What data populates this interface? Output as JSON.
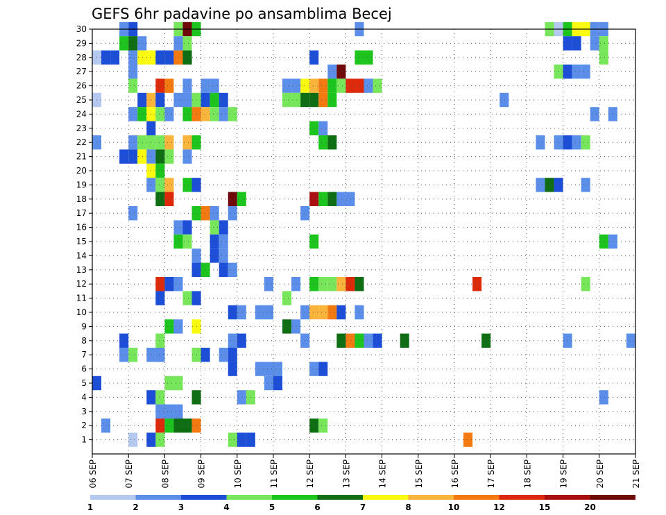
{
  "chart_data": {
    "type": "heatmap",
    "title": "GEFS 6hr padavine po ansamblima Becej",
    "x_tick_labels": [
      "06 SEP",
      "07 SEP",
      "08 SEP",
      "09 SEP",
      "10 SEP",
      "11 SEP",
      "12 SEP",
      "13 SEP",
      "14 SEP",
      "15 SEP",
      "16 SEP",
      "17 SEP",
      "18 SEP",
      "19 SEP",
      "20 SEP",
      "21 SEP"
    ],
    "x_range_days": [
      0,
      15
    ],
    "y_tick_labels": [
      "1",
      "2",
      "3",
      "4",
      "5",
      "6",
      "7",
      "8",
      "9",
      "10",
      "11",
      "12",
      "13",
      "14",
      "15",
      "16",
      "17",
      "18",
      "19",
      "20",
      "21",
      "22",
      "23",
      "24",
      "25",
      "26",
      "27",
      "28",
      "29",
      "30"
    ],
    "y_range": [
      0,
      30
    ],
    "grid": true,
    "colorbar": {
      "position": "bottom",
      "labels": [
        "1",
        "2",
        "3",
        "4",
        "5",
        "6",
        "7",
        "8",
        "10",
        "12",
        "15",
        "20"
      ],
      "colors": [
        "#b4c8f0",
        "#5a8ee8",
        "#1c4ed8",
        "#78e65a",
        "#1ec41e",
        "#0f6e14",
        "#fafa10",
        "#fab43c",
        "#f27a10",
        "#dc2a0a",
        "#aa1010",
        "#6e0a0a"
      ]
    },
    "cells": [
      [
        0.75,
        30,
        1
      ],
      [
        1.0,
        30,
        2
      ],
      [
        2.25,
        30,
        3
      ],
      [
        2.5,
        30,
        11
      ],
      [
        2.75,
        30,
        4
      ],
      [
        7.25,
        30,
        1
      ],
      [
        12.5,
        30,
        3
      ],
      [
        12.75,
        30,
        0
      ],
      [
        13.0,
        30,
        4
      ],
      [
        13.25,
        30,
        6
      ],
      [
        13.5,
        30,
        6
      ],
      [
        13.75,
        30,
        1
      ],
      [
        14.0,
        30,
        1
      ],
      [
        0.75,
        29,
        4
      ],
      [
        1.0,
        29,
        5
      ],
      [
        1.25,
        29,
        1
      ],
      [
        2.25,
        29,
        1
      ],
      [
        2.5,
        29,
        3
      ],
      [
        13.0,
        29,
        2
      ],
      [
        13.25,
        29,
        2
      ],
      [
        13.75,
        29,
        1
      ],
      [
        14.0,
        29,
        3
      ],
      [
        1.0,
        28,
        1
      ],
      [
        0.0,
        28,
        0
      ],
      [
        0.25,
        28,
        2
      ],
      [
        0.5,
        28,
        2
      ],
      [
        1.25,
        28,
        6
      ],
      [
        1.5,
        28,
        6
      ],
      [
        1.75,
        28,
        2
      ],
      [
        2.0,
        28,
        2
      ],
      [
        2.25,
        28,
        8
      ],
      [
        2.5,
        28,
        5
      ],
      [
        6.0,
        28,
        2
      ],
      [
        7.25,
        28,
        4
      ],
      [
        7.5,
        28,
        4
      ],
      [
        14.0,
        28,
        3
      ],
      [
        1.0,
        27,
        1
      ],
      [
        6.5,
        27,
        1
      ],
      [
        6.75,
        27,
        11
      ],
      [
        12.75,
        27,
        3
      ],
      [
        13.0,
        27,
        2
      ],
      [
        13.25,
        27,
        1
      ],
      [
        13.5,
        27,
        1
      ],
      [
        1.0,
        26,
        3
      ],
      [
        1.75,
        26,
        9
      ],
      [
        2.0,
        26,
        8
      ],
      [
        2.5,
        26,
        1
      ],
      [
        3.0,
        26,
        1
      ],
      [
        3.25,
        26,
        1
      ],
      [
        5.25,
        26,
        1
      ],
      [
        5.5,
        26,
        1
      ],
      [
        5.75,
        26,
        6
      ],
      [
        6.0,
        26,
        7
      ],
      [
        6.25,
        26,
        8
      ],
      [
        6.5,
        26,
        4
      ],
      [
        6.75,
        26,
        3
      ],
      [
        7.0,
        26,
        9
      ],
      [
        7.25,
        26,
        9
      ],
      [
        7.5,
        26,
        1
      ],
      [
        7.75,
        26,
        3
      ],
      [
        0.0,
        25,
        0
      ],
      [
        1.25,
        25,
        2
      ],
      [
        1.5,
        25,
        7
      ],
      [
        1.75,
        25,
        2
      ],
      [
        2.25,
        25,
        1
      ],
      [
        2.5,
        25,
        1
      ],
      [
        2.75,
        25,
        3
      ],
      [
        3.0,
        25,
        2
      ],
      [
        3.25,
        25,
        4
      ],
      [
        3.5,
        25,
        2
      ],
      [
        5.25,
        25,
        3
      ],
      [
        5.5,
        25,
        3
      ],
      [
        5.75,
        25,
        5
      ],
      [
        6.0,
        25,
        5
      ],
      [
        6.25,
        25,
        8
      ],
      [
        6.5,
        25,
        4
      ],
      [
        11.25,
        25,
        1
      ],
      [
        1.0,
        24,
        1
      ],
      [
        1.25,
        24,
        4
      ],
      [
        1.5,
        24,
        6
      ],
      [
        1.75,
        24,
        3
      ],
      [
        2.0,
        24,
        1
      ],
      [
        2.5,
        24,
        4
      ],
      [
        2.75,
        24,
        8
      ],
      [
        3.0,
        24,
        7
      ],
      [
        3.25,
        24,
        3
      ],
      [
        3.5,
        24,
        1
      ],
      [
        3.75,
        24,
        3
      ],
      [
        13.75,
        24,
        1
      ],
      [
        14.25,
        24,
        1
      ],
      [
        1.5,
        23,
        2
      ],
      [
        6.0,
        23,
        4
      ],
      [
        6.25,
        23,
        1
      ],
      [
        0.0,
        22,
        1
      ],
      [
        1.0,
        22,
        1
      ],
      [
        1.25,
        22,
        3
      ],
      [
        1.5,
        22,
        3
      ],
      [
        1.75,
        22,
        3
      ],
      [
        2.0,
        22,
        7
      ],
      [
        2.5,
        22,
        7
      ],
      [
        2.75,
        22,
        4
      ],
      [
        6.25,
        22,
        4
      ],
      [
        6.5,
        22,
        5
      ],
      [
        12.25,
        22,
        1
      ],
      [
        12.75,
        22,
        1
      ],
      [
        13.0,
        22,
        2
      ],
      [
        13.25,
        22,
        1
      ],
      [
        13.5,
        22,
        3
      ],
      [
        0.75,
        21,
        2
      ],
      [
        1.0,
        21,
        2
      ],
      [
        1.5,
        21,
        1
      ],
      [
        1.25,
        21,
        6
      ],
      [
        1.75,
        21,
        5
      ],
      [
        2.0,
        21,
        3
      ],
      [
        2.5,
        21,
        1
      ],
      [
        1.5,
        20,
        6
      ],
      [
        1.75,
        20,
        4
      ],
      [
        1.5,
        19,
        1
      ],
      [
        1.75,
        19,
        3
      ],
      [
        2.0,
        19,
        7
      ],
      [
        2.5,
        19,
        4
      ],
      [
        2.75,
        19,
        2
      ],
      [
        12.25,
        19,
        1
      ],
      [
        12.5,
        19,
        5
      ],
      [
        12.75,
        19,
        2
      ],
      [
        13.5,
        19,
        1
      ],
      [
        1.75,
        18,
        5
      ],
      [
        2.0,
        18,
        9
      ],
      [
        3.75,
        18,
        11
      ],
      [
        4.0,
        18,
        4
      ],
      [
        6.0,
        18,
        10
      ],
      [
        6.25,
        18,
        4
      ],
      [
        6.5,
        18,
        5
      ],
      [
        6.75,
        18,
        1
      ],
      [
        7.0,
        18,
        1
      ],
      [
        1.0,
        17,
        1
      ],
      [
        2.75,
        17,
        4
      ],
      [
        3.0,
        17,
        8
      ],
      [
        3.25,
        17,
        1
      ],
      [
        3.75,
        17,
        1
      ],
      [
        5.75,
        17,
        1
      ],
      [
        2.25,
        16,
        1
      ],
      [
        2.5,
        16,
        2
      ],
      [
        3.25,
        16,
        3
      ],
      [
        3.5,
        16,
        2
      ],
      [
        2.25,
        15,
        4
      ],
      [
        2.5,
        15,
        3
      ],
      [
        3.25,
        15,
        2
      ],
      [
        3.5,
        15,
        1
      ],
      [
        6.0,
        15,
        4
      ],
      [
        14.0,
        15,
        4
      ],
      [
        14.25,
        15,
        1
      ],
      [
        2.75,
        14,
        1
      ],
      [
        3.25,
        14,
        2
      ],
      [
        3.5,
        14,
        1
      ],
      [
        2.75,
        13,
        2
      ],
      [
        3.0,
        13,
        4
      ],
      [
        3.5,
        13,
        2
      ],
      [
        3.75,
        13,
        1
      ],
      [
        1.75,
        12,
        9
      ],
      [
        2.0,
        12,
        2
      ],
      [
        2.25,
        12,
        1
      ],
      [
        4.75,
        12,
        1
      ],
      [
        5.5,
        12,
        1
      ],
      [
        6.0,
        12,
        4
      ],
      [
        6.25,
        12,
        3
      ],
      [
        6.5,
        12,
        3
      ],
      [
        6.75,
        12,
        7
      ],
      [
        7.0,
        12,
        9
      ],
      [
        7.25,
        12,
        5
      ],
      [
        10.5,
        12,
        9
      ],
      [
        13.5,
        12,
        3
      ],
      [
        1.75,
        11,
        2
      ],
      [
        2.5,
        11,
        3
      ],
      [
        2.75,
        11,
        2
      ],
      [
        5.25,
        11,
        3
      ],
      [
        3.75,
        10,
        2
      ],
      [
        4.0,
        10,
        1
      ],
      [
        4.5,
        10,
        1
      ],
      [
        4.75,
        10,
        1
      ],
      [
        5.75,
        10,
        1
      ],
      [
        6.0,
        10,
        7
      ],
      [
        6.25,
        10,
        7
      ],
      [
        6.5,
        10,
        8
      ],
      [
        6.75,
        10,
        2
      ],
      [
        7.25,
        10,
        1
      ],
      [
        2.0,
        9,
        4
      ],
      [
        2.25,
        9,
        1
      ],
      [
        2.75,
        9,
        6
      ],
      [
        5.25,
        9,
        5
      ],
      [
        5.5,
        9,
        1
      ],
      [
        0.75,
        8,
        2
      ],
      [
        1.75,
        8,
        3
      ],
      [
        3.75,
        8,
        1
      ],
      [
        4.0,
        8,
        2
      ],
      [
        5.75,
        8,
        1
      ],
      [
        6.75,
        8,
        5
      ],
      [
        7.0,
        8,
        8
      ],
      [
        7.25,
        8,
        4
      ],
      [
        7.5,
        8,
        1
      ],
      [
        7.75,
        8,
        2
      ],
      [
        8.5,
        8,
        5
      ],
      [
        10.75,
        8,
        5
      ],
      [
        13.0,
        8,
        1
      ],
      [
        14.75,
        8,
        1
      ],
      [
        0.75,
        7,
        1
      ],
      [
        1.0,
        7,
        3
      ],
      [
        1.5,
        7,
        1
      ],
      [
        1.75,
        7,
        1
      ],
      [
        2.75,
        7,
        3
      ],
      [
        3.0,
        7,
        2
      ],
      [
        3.5,
        7,
        1
      ],
      [
        3.75,
        7,
        2
      ],
      [
        1.75,
        7,
        1
      ],
      [
        3.75,
        6,
        2
      ],
      [
        4.5,
        6,
        1
      ],
      [
        4.75,
        6,
        1
      ],
      [
        5.0,
        6,
        1
      ],
      [
        6.0,
        6,
        1
      ],
      [
        6.25,
        6,
        2
      ],
      [
        0.0,
        5,
        2
      ],
      [
        2.0,
        5,
        3
      ],
      [
        2.25,
        5,
        3
      ],
      [
        4.75,
        5,
        1
      ],
      [
        5.0,
        5,
        2
      ],
      [
        1.5,
        4,
        2
      ],
      [
        1.75,
        4,
        3
      ],
      [
        2.75,
        4,
        5
      ],
      [
        4.0,
        4,
        1
      ],
      [
        4.25,
        4,
        3
      ],
      [
        14.0,
        4,
        1
      ],
      [
        1.75,
        3,
        1
      ],
      [
        2.0,
        3,
        1
      ],
      [
        2.25,
        3,
        1
      ],
      [
        0.25,
        2,
        1
      ],
      [
        1.75,
        2,
        9
      ],
      [
        2.0,
        2,
        4
      ],
      [
        2.25,
        2,
        5
      ],
      [
        2.5,
        2,
        5
      ],
      [
        2.75,
        2,
        8
      ],
      [
        6.0,
        2,
        5
      ],
      [
        6.25,
        2,
        3
      ],
      [
        1.75,
        1,
        3
      ],
      [
        1.5,
        1,
        2
      ],
      [
        3.75,
        1,
        3
      ],
      [
        4.0,
        1,
        2
      ],
      [
        4.25,
        1,
        2
      ],
      [
        10.25,
        1,
        8
      ],
      [
        1.0,
        1,
        0
      ]
    ]
  }
}
